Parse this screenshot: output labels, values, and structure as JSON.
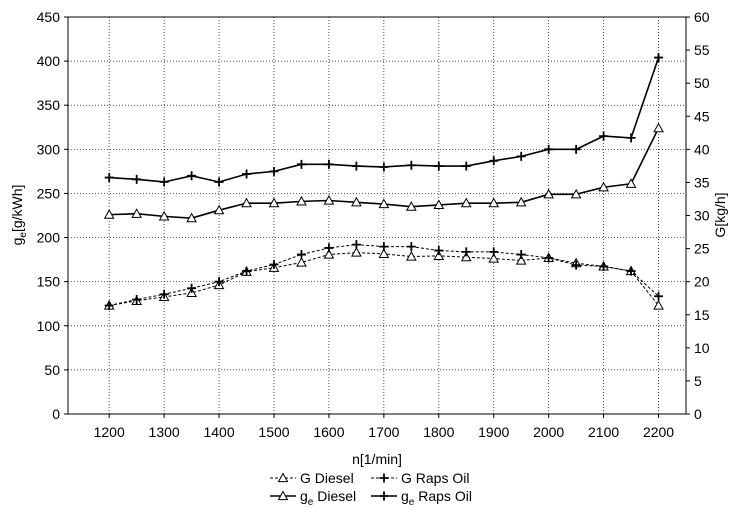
{
  "chart_data": {
    "type": "line",
    "xlabel": "n[1/min]",
    "ylabel_left": {
      "main": "g",
      "sub": "e",
      "unit": "[g/kWh]"
    },
    "ylabel_right": "G[kg/h]",
    "xlim": [
      1125,
      2250
    ],
    "ylim_left": [
      0,
      450
    ],
    "ylim_right": [
      0,
      60
    ],
    "x_ticks": [
      1200,
      1300,
      1400,
      1500,
      1600,
      1700,
      1800,
      1900,
      2000,
      2100,
      2200
    ],
    "y_ticks_left": [
      0,
      50,
      100,
      150,
      200,
      250,
      300,
      350,
      400,
      450
    ],
    "y_ticks_right": [
      0,
      5,
      10,
      15,
      20,
      25,
      30,
      35,
      40,
      45,
      50,
      55,
      60
    ],
    "grid": true,
    "x": [
      1200,
      1250,
      1300,
      1350,
      1400,
      1450,
      1500,
      1550,
      1600,
      1650,
      1700,
      1750,
      1800,
      1850,
      1900,
      1950,
      2000,
      2050,
      2100,
      2150,
      2200
    ],
    "series": [
      {
        "name": "G Diesel",
        "axis": "right",
        "marker": "triangle",
        "line": "dashed",
        "values": [
          16.4,
          17.1,
          17.7,
          18.3,
          19.5,
          21.5,
          22.1,
          22.9,
          24.1,
          24.4,
          24.2,
          23.8,
          23.9,
          23.7,
          23.5,
          23.2,
          23.6,
          22.8,
          22.3,
          21.6,
          16.4
        ]
      },
      {
        "name": "G Raps Oil",
        "axis": "right",
        "marker": "plus",
        "line": "dashed",
        "values": [
          16.4,
          17.3,
          18.1,
          19.0,
          20.0,
          21.6,
          22.6,
          24.1,
          25.1,
          25.6,
          25.3,
          25.3,
          24.7,
          24.5,
          24.5,
          24.1,
          23.6,
          22.5,
          22.3,
          21.6,
          17.8
        ]
      },
      {
        "name": "ge Diesel",
        "label_main": "g",
        "label_sub": "e",
        "label_rest": " Diesel",
        "axis": "left",
        "marker": "triangle",
        "line": "solid",
        "values": [
          226,
          227,
          224,
          222,
          231,
          239,
          239,
          241,
          242,
          240,
          238,
          235,
          237,
          239,
          239,
          240,
          249,
          249,
          257,
          261,
          324
        ]
      },
      {
        "name": "ge Raps Oil",
        "label_main": "g",
        "label_sub": "e",
        "label_rest": " Raps Oil",
        "axis": "left",
        "marker": "plus",
        "line": "solid",
        "values": [
          268,
          266,
          263,
          270,
          263,
          272,
          275,
          283,
          283,
          281,
          280,
          282,
          281,
          281,
          287,
          292,
          300,
          300,
          315,
          313,
          404
        ]
      }
    ],
    "legend_placement": "bottom-center"
  }
}
